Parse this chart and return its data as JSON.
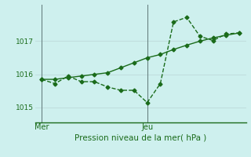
{
  "xlabel": "Pression niveau de la mer( hPa )",
  "background_color": "#cef0ee",
  "grid_color": "#c0dede",
  "line_color": "#1a6b1a",
  "ylim": [
    1014.55,
    1018.1
  ],
  "yticks": [
    1015,
    1016,
    1017
  ],
  "x_tick_labels": [
    "Mer",
    "Jeu"
  ],
  "x_tick_positions": [
    0,
    8
  ],
  "x_vline_positions": [
    0,
    8
  ],
  "xlim": [
    -0.5,
    15.5
  ],
  "series1_x": [
    0,
    1,
    2,
    3,
    4,
    5,
    6,
    7,
    8,
    9,
    10,
    11,
    12,
    13,
    14,
    15
  ],
  "series1_y": [
    1015.85,
    1015.72,
    1015.95,
    1015.78,
    1015.78,
    1015.62,
    1015.52,
    1015.52,
    1015.15,
    1015.72,
    1017.58,
    1017.72,
    1017.15,
    1017.02,
    1017.22,
    1017.25
  ],
  "series2_x": [
    0,
    1,
    2,
    3,
    4,
    5,
    6,
    7,
    8,
    9,
    10,
    11,
    12,
    13,
    14,
    15
  ],
  "series2_y": [
    1015.85,
    1015.85,
    1015.9,
    1015.95,
    1016.0,
    1016.05,
    1016.2,
    1016.35,
    1016.5,
    1016.6,
    1016.75,
    1016.88,
    1017.0,
    1017.1,
    1017.18,
    1017.25
  ],
  "marker_size": 2.5,
  "linewidth": 1.0
}
